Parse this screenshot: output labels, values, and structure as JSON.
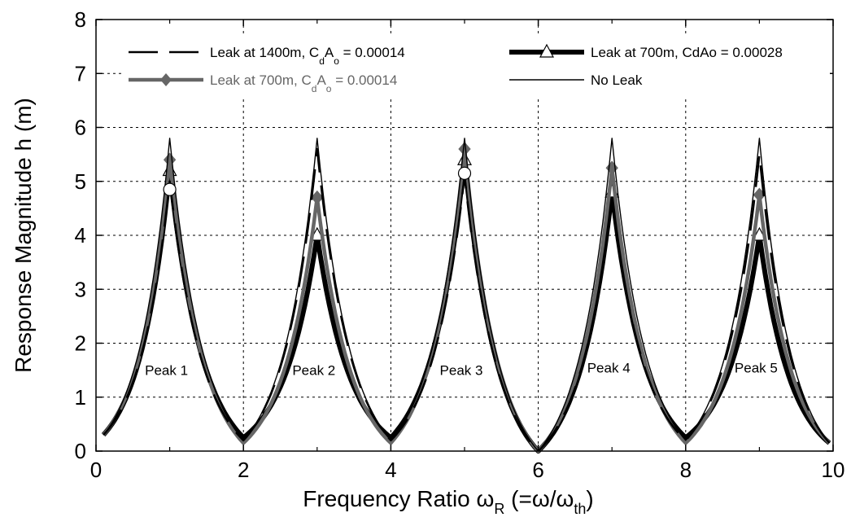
{
  "chart_data": {
    "type": "line",
    "xlabel": "Frequency Ratio ω",
    "xlabel_sub": "R",
    "xlabel_tail_open": " (=ω/ω",
    "xlabel_tail_sub": "th",
    "xlabel_tail_close": ")",
    "ylabel": "Response Magnitude h (m)",
    "xlim": [
      0,
      10
    ],
    "ylim": [
      0,
      8
    ],
    "x_ticks": [
      0,
      2,
      4,
      6,
      8,
      10
    ],
    "y_ticks": [
      0,
      1,
      2,
      3,
      4,
      5,
      6,
      7,
      8
    ],
    "grid": true,
    "legend_position": "top",
    "peak_labels": [
      {
        "text": "Peak 1",
        "x": 1,
        "y": 1.5
      },
      {
        "text": "Peak 2",
        "x": 3,
        "y": 1.5
      },
      {
        "text": "Peak 3",
        "x": 5,
        "y": 1.5
      },
      {
        "text": "Peak 4",
        "x": 7,
        "y": 1.55
      },
      {
        "text": "Peak 5",
        "x": 9,
        "y": 1.55
      }
    ],
    "series": [
      {
        "key": "no_leak",
        "legend": [
          {
            "t": "No Leak"
          }
        ],
        "color": "#000000",
        "marker": "none",
        "peaks": [
          5.8,
          5.8,
          5.8,
          5.8,
          5.8
        ],
        "troughs": [
          0.3,
          0.2,
          0.2,
          0.0,
          0.2,
          0.15
        ]
      },
      {
        "key": "leak_1400",
        "legend": [
          {
            "t": "Leak at 1400m, C"
          },
          {
            "s": "d"
          },
          {
            "t": "A"
          },
          {
            "s": "o"
          },
          {
            "t": " = 0.00014"
          }
        ],
        "color": "#000000",
        "marker": "none",
        "peaks": [
          5.0,
          5.6,
          5.1,
          4.7,
          5.5
        ],
        "troughs": [
          0.3,
          0.2,
          0.2,
          0.0,
          0.2,
          0.15
        ]
      },
      {
        "key": "leak_700_000014",
        "legend": [
          {
            "t": "Leak at 700m, C"
          },
          {
            "s": "d"
          },
          {
            "t": "A"
          },
          {
            "s": "o"
          },
          {
            "t": " = 0.00014"
          }
        ],
        "color": "#666666",
        "marker": "diamond",
        "peaks": [
          5.4,
          4.7,
          5.6,
          5.25,
          4.75
        ],
        "troughs": [
          0.3,
          0.15,
          0.15,
          0.0,
          0.15,
          0.15
        ]
      },
      {
        "key": "leak_700_000028",
        "legend": [
          {
            "t": "Leak at 700m, CdAo = 0.00028"
          }
        ],
        "color": "#000000",
        "marker": "triangle",
        "peaks": [
          5.2,
          4.0,
          5.4,
          4.8,
          4.0
        ],
        "troughs": [
          0.3,
          0.25,
          0.25,
          0.0,
          0.25,
          0.15
        ]
      }
    ],
    "no_leak_circles": [
      {
        "x": 1,
        "y": 4.85
      },
      {
        "x": 5,
        "y": 5.15
      }
    ]
  }
}
